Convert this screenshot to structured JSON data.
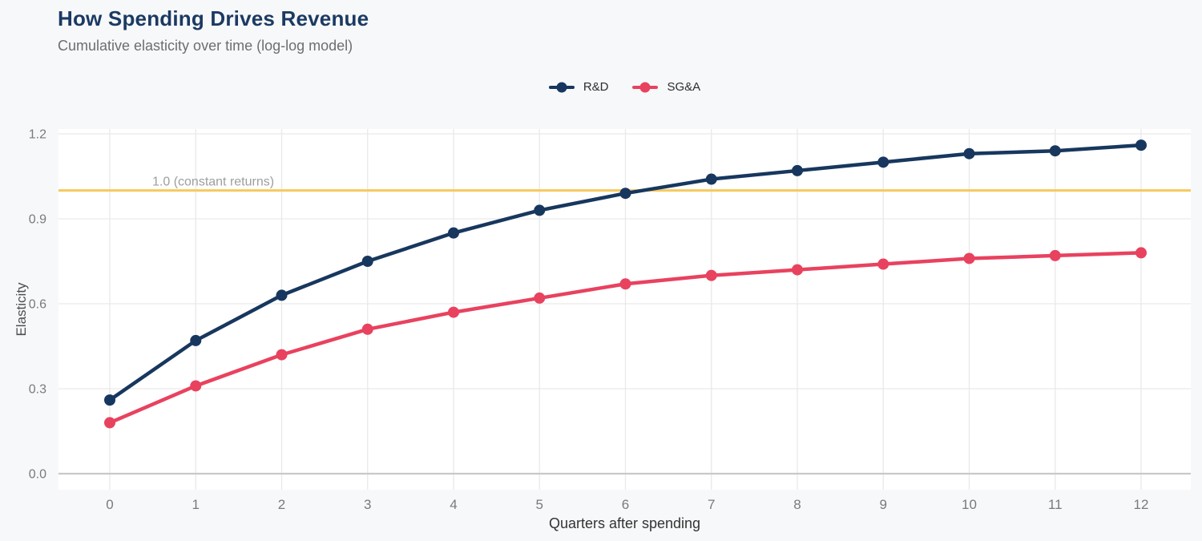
{
  "header": {
    "title": "How Spending Drives Revenue",
    "subtitle": "Cumulative elasticity over time (log-log model)"
  },
  "chart_data": {
    "type": "line",
    "x": [
      0,
      1,
      2,
      3,
      4,
      5,
      6,
      7,
      8,
      9,
      10,
      11,
      12
    ],
    "series": [
      {
        "name": "R&D",
        "color": "#17375e",
        "values": [
          0.26,
          0.47,
          0.63,
          0.75,
          0.85,
          0.93,
          0.99,
          1.04,
          1.07,
          1.1,
          1.13,
          1.14,
          1.16
        ]
      },
      {
        "name": "SG&A",
        "color": "#e8425f",
        "values": [
          0.18,
          0.31,
          0.42,
          0.51,
          0.57,
          0.62,
          0.67,
          0.7,
          0.72,
          0.74,
          0.76,
          0.77,
          0.78
        ]
      }
    ],
    "title": "How Spending Drives Revenue",
    "subtitle": "Cumulative elasticity over time (log-log model)",
    "xlabel": "Quarters after spending",
    "ylabel": "Elasticity",
    "ylim": [
      0,
      1.2
    ],
    "yticks": [
      0,
      0.3,
      0.6,
      0.9,
      1.2
    ],
    "xticks": [
      0,
      1,
      2,
      3,
      4,
      5,
      6,
      7,
      8,
      9,
      10,
      11,
      12
    ],
    "grid": true,
    "legend_position": "top-center",
    "reference_line": {
      "value": 1.0,
      "label": "1.0 (constant returns)",
      "color": "#f6c95c"
    }
  },
  "colors": {
    "background": "#f7f8fa",
    "plot_background": "#ffffff",
    "gridline": "#e9e9e9",
    "zero_line": "#c9c9c9",
    "title": "#1b3a63",
    "subtitle": "#6e6e6e",
    "tick_label": "#7a7a7a",
    "y_axis_label": "#4d4d4d",
    "x_axis_label": "#333333",
    "annotation": "#9e9e9e"
  }
}
